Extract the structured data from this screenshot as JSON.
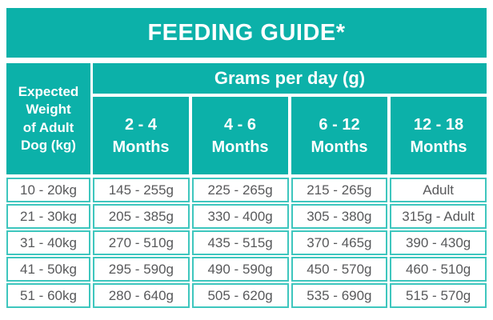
{
  "title": "FEEDING GUIDE*",
  "table": {
    "weight_header_lines": [
      "Expected",
      "Weight",
      "of Adult",
      "Dog (kg)"
    ],
    "grams_header": "Grams per day (g)",
    "month_columns": [
      {
        "range": "2 - 4",
        "word": "Months"
      },
      {
        "range": "4 - 6",
        "word": "Months"
      },
      {
        "range": "6 - 12",
        "word": "Months"
      },
      {
        "range": "12 - 18",
        "word": "Months"
      }
    ],
    "rows": [
      {
        "weight": "10 - 20kg",
        "values": [
          "145 - 255g",
          "225 - 265g",
          "215 - 265g",
          "Adult"
        ]
      },
      {
        "weight": "21 - 30kg",
        "values": [
          "205 - 385g",
          "330 - 400g",
          "305 - 380g",
          "315g - Adult"
        ]
      },
      {
        "weight": "31 - 40kg",
        "values": [
          "270 - 510g",
          "435 - 515g",
          "370 - 465g",
          "390 - 430g"
        ]
      },
      {
        "weight": "41 - 50kg",
        "values": [
          "295 - 590g",
          "490 - 590g",
          "450 - 570g",
          "460 - 510g"
        ]
      },
      {
        "weight": "51 - 60kg",
        "values": [
          "280 - 640g",
          "505 - 620g",
          "535 - 690g",
          "515 - 570g"
        ]
      }
    ]
  },
  "colors": {
    "header_teal": "#0cb1a9",
    "cell_border_turquoise": "#3ec6be",
    "data_text_gray": "#58595b",
    "header_text": "#ffffff"
  },
  "chart_data": {
    "type": "table",
    "title": "FEEDING GUIDE*",
    "column_group_header": "Grams per day (g)",
    "row_header_label": "Expected Weight of Adult Dog (kg)",
    "columns": [
      "Expected Weight of Adult Dog (kg)",
      "2 - 4 Months",
      "4 - 6 Months",
      "6 - 12 Months",
      "12 - 18 Months"
    ],
    "rows": [
      [
        "10 - 20kg",
        "145 - 255g",
        "225 - 265g",
        "215 - 265g",
        "Adult"
      ],
      [
        "21 - 30kg",
        "205 - 385g",
        "330 - 400g",
        "305 - 380g",
        "315g - Adult"
      ],
      [
        "31 - 40kg",
        "270 - 510g",
        "435 - 515g",
        "370 - 465g",
        "390 - 430g"
      ],
      [
        "41 - 50kg",
        "295 - 590g",
        "490 - 590g",
        "450 - 570g",
        "460 - 510g"
      ],
      [
        "51 - 60kg",
        "280 - 640g",
        "505 - 620g",
        "535 - 690g",
        "515 - 570g"
      ]
    ]
  }
}
